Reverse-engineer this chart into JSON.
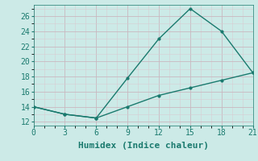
{
  "xlabel": "Humidex (Indice chaleur)",
  "line1_x": [
    0,
    3,
    6,
    9,
    12,
    15,
    18,
    21
  ],
  "line1_y": [
    14,
    13,
    12.5,
    17.8,
    23,
    27,
    24,
    18.5
  ],
  "line2_x": [
    0,
    3,
    6,
    9,
    12,
    15,
    18,
    21
  ],
  "line2_y": [
    14,
    13,
    12.5,
    14.0,
    15.5,
    16.5,
    17.5,
    18.5
  ],
  "line_color": "#1a7a6e",
  "bg_color": "#cceae7",
  "grid_color": "#b8d8d5",
  "xlim": [
    0,
    21
  ],
  "ylim": [
    11.5,
    27.5
  ],
  "xticks": [
    0,
    3,
    6,
    9,
    12,
    15,
    18,
    21
  ],
  "yticks": [
    12,
    14,
    16,
    18,
    20,
    22,
    24,
    26
  ],
  "tick_fontsize": 7,
  "xlabel_fontsize": 8
}
